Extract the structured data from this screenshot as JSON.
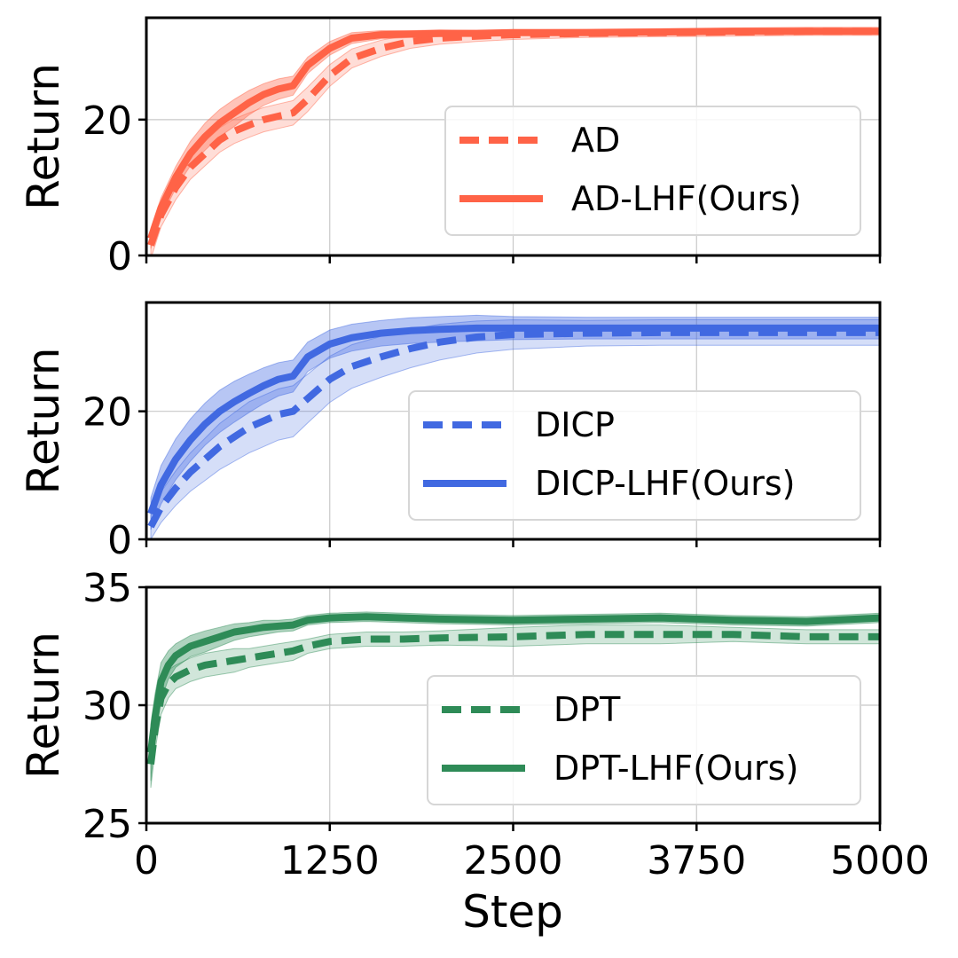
{
  "chart_data": [
    {
      "type": "line",
      "panel": "top",
      "title": "",
      "xlabel": "",
      "ylabel": "Return",
      "xlim": [
        0,
        5000
      ],
      "ylim": [
        0,
        35
      ],
      "xticks": [
        0,
        1250,
        2500,
        3750,
        5000
      ],
      "yticks": [
        0,
        20
      ],
      "ytick_labels": [
        "0",
        "20"
      ],
      "grid": true,
      "legend_position": "center-right",
      "color": "#FF6347",
      "x": [
        30,
        100,
        200,
        300,
        400,
        500,
        600,
        700,
        800,
        900,
        1000,
        1100,
        1250,
        1400,
        1600,
        1800,
        2000,
        2250,
        2500,
        3000,
        3500,
        4000,
        4500,
        5000
      ],
      "series": [
        {
          "name": "AD",
          "style": "dashed",
          "values": [
            1.5,
            6,
            10,
            13,
            15,
            17,
            18.3,
            19.2,
            20,
            20.5,
            21,
            23,
            26.5,
            29,
            30.5,
            31.5,
            32,
            32.3,
            32.5,
            32.7,
            32.8,
            32.9,
            33,
            33
          ],
          "band": [
            2.0,
            1.8,
            1.8,
            1.8,
            1.8,
            1.8,
            1.8,
            1.8,
            1.8,
            1.8,
            1.8,
            1.8,
            1.6,
            1.4,
            1.2,
            1.0,
            0.9,
            0.8,
            0.7,
            0.6,
            0.6,
            0.6,
            0.6,
            0.6
          ]
        },
        {
          "name": "AD-LHF(Ours)",
          "style": "solid",
          "values": [
            2.5,
            7,
            11.5,
            15,
            17.5,
            19.5,
            21,
            22.5,
            23.7,
            24.5,
            25,
            28,
            30.5,
            32,
            32.5,
            32.6,
            32.7,
            32.7,
            32.8,
            32.8,
            32.9,
            33,
            33,
            33
          ],
          "band": [
            1.5,
            1.5,
            1.6,
            1.8,
            2.0,
            2.0,
            2.0,
            1.8,
            1.6,
            1.5,
            1.4,
            1.2,
            1.0,
            0.8,
            0.6,
            0.5,
            0.5,
            0.4,
            0.4,
            0.4,
            0.4,
            0.4,
            0.4,
            0.4
          ]
        }
      ]
    },
    {
      "type": "line",
      "panel": "middle",
      "title": "",
      "xlabel": "",
      "ylabel": "Return",
      "xlim": [
        0,
        5000
      ],
      "ylim": [
        0,
        37
      ],
      "xticks": [
        0,
        1250,
        2500,
        3750,
        5000
      ],
      "yticks": [
        0,
        20
      ],
      "ytick_labels": [
        "0",
        "20"
      ],
      "grid": true,
      "legend_position": "center-right",
      "color": "#4169E1",
      "x": [
        30,
        100,
        200,
        300,
        400,
        500,
        600,
        700,
        800,
        900,
        1000,
        1100,
        1250,
        1400,
        1600,
        1800,
        2000,
        2250,
        2500,
        3000,
        3500,
        4000,
        4500,
        5000
      ],
      "series": [
        {
          "name": "DICP",
          "style": "dashed",
          "values": [
            2,
            5,
            8,
            10.5,
            12.5,
            14.5,
            16,
            17.5,
            18.5,
            19.5,
            20,
            22,
            25,
            27,
            28.5,
            29.8,
            30.8,
            31.6,
            32,
            32.2,
            32.3,
            32.3,
            32.3,
            32.3
          ],
          "band": [
            2.0,
            2.4,
            2.7,
            3.0,
            3.3,
            3.6,
            3.8,
            4.0,
            4.0,
            4.0,
            4.0,
            3.8,
            3.6,
            3.4,
            3.2,
            3.0,
            2.8,
            2.5,
            2.3,
            2.0,
            2.0,
            2.0,
            2.0,
            2.0
          ]
        },
        {
          "name": "DICP-LHF(Ours)",
          "style": "solid",
          "values": [
            4,
            8.5,
            12.5,
            15.5,
            18,
            20,
            21.5,
            22.8,
            24,
            25,
            25.5,
            28.5,
            30.5,
            31.5,
            32.2,
            32.6,
            32.8,
            33,
            33,
            33,
            33,
            33,
            33,
            33
          ],
          "band": [
            2.5,
            3.0,
            3.2,
            3.3,
            3.3,
            3.3,
            3.2,
            3.0,
            2.8,
            2.6,
            2.5,
            2.3,
            2.2,
            2.1,
            2.0,
            2.0,
            2.0,
            2.0,
            1.8,
            1.7,
            1.7,
            1.7,
            1.7,
            1.7
          ]
        }
      ]
    },
    {
      "type": "line",
      "panel": "bottom",
      "title": "",
      "xlabel": "Step",
      "ylabel": "Return",
      "xlim": [
        0,
        5000
      ],
      "ylim": [
        25,
        35
      ],
      "xticks": [
        0,
        1250,
        2500,
        3750,
        5000
      ],
      "xtick_labels": [
        "0",
        "1250",
        "2500",
        "3750",
        "5000"
      ],
      "yticks": [
        25,
        30,
        35
      ],
      "ytick_labels": [
        "25",
        "30",
        "35"
      ],
      "grid": true,
      "legend_position": "center-right",
      "color": "#2E8B57",
      "x": [
        30,
        60,
        100,
        150,
        200,
        300,
        400,
        500,
        600,
        700,
        800,
        900,
        1000,
        1100,
        1250,
        1500,
        1750,
        2000,
        2500,
        3000,
        3500,
        4000,
        4500,
        5000
      ],
      "series": [
        {
          "name": "DPT",
          "style": "dashed",
          "values": [
            27.5,
            29,
            30.3,
            30.9,
            31.2,
            31.5,
            31.7,
            31.8,
            31.9,
            32,
            32.1,
            32.2,
            32.3,
            32.5,
            32.7,
            32.8,
            32.8,
            32.85,
            32.9,
            33,
            33,
            33,
            32.9,
            32.9
          ],
          "band": [
            1.0,
            0.9,
            0.7,
            0.6,
            0.5,
            0.5,
            0.5,
            0.5,
            0.5,
            0.4,
            0.4,
            0.4,
            0.4,
            0.3,
            0.3,
            0.3,
            0.3,
            0.3,
            0.4,
            0.4,
            0.4,
            0.3,
            0.3,
            0.3
          ]
        },
        {
          "name": "DPT-LHF(Ours)",
          "style": "solid",
          "values": [
            28,
            29.5,
            31,
            31.7,
            32.1,
            32.5,
            32.7,
            32.9,
            33.1,
            33.2,
            33.3,
            33.35,
            33.4,
            33.6,
            33.7,
            33.75,
            33.7,
            33.65,
            33.6,
            33.65,
            33.7,
            33.6,
            33.55,
            33.7
          ],
          "band": [
            1.2,
            1.0,
            0.8,
            0.6,
            0.5,
            0.45,
            0.45,
            0.4,
            0.35,
            0.3,
            0.3,
            0.25,
            0.25,
            0.2,
            0.2,
            0.2,
            0.2,
            0.2,
            0.2,
            0.2,
            0.2,
            0.2,
            0.2,
            0.2
          ]
        }
      ]
    }
  ]
}
